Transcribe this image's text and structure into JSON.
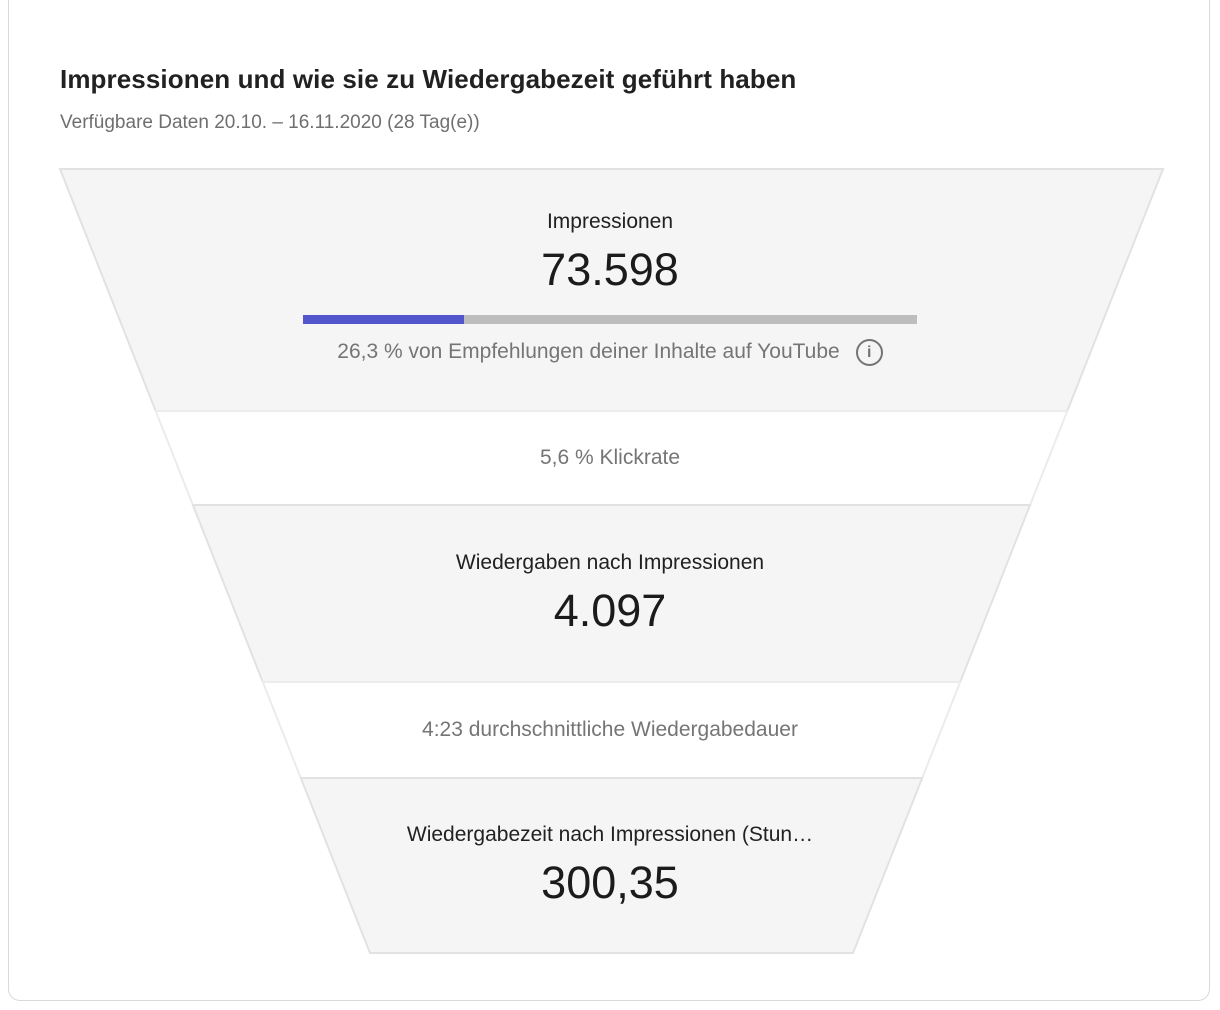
{
  "header": {
    "title": "Impressionen und wie sie zu Wiedergabezeit geführt haben",
    "subtitle": "Verfügbare Daten 20.10. – 16.11.2020 (28 Tag(e))"
  },
  "funnel": {
    "stage_impressions": {
      "label": "Impressionen",
      "value": "73.598",
      "caption": "26,3 % von Empfehlungen deiner Inhalte auf YouTube",
      "bar_percent": 26.3,
      "info_icon_glyph": "i"
    },
    "stage_ctr": {
      "text": "5,6 % Klickrate"
    },
    "stage_views": {
      "label": "Wiedergaben nach Impressionen",
      "value": "4.097"
    },
    "stage_duration": {
      "text": "4:23 durchschnittliche Wiedergabedauer"
    },
    "stage_watchtime": {
      "label": "Wiedergabezeit nach Impressionen (Stun…",
      "value": "300,35"
    }
  },
  "colors": {
    "accent_bar": "#5355cd",
    "bar_track": "#bdbdbd",
    "funnel_fill": "#f5f5f5",
    "funnel_border": "#e2e2e2",
    "text_primary": "#212121",
    "text_secondary": "#757575",
    "card_border": "#d9d9d9"
  },
  "chart_data": {
    "type": "funnel",
    "title": "Impressionen und wie sie zu Wiedergabezeit geführt haben",
    "subtitle": "Verfügbare Daten 20.10. – 16.11.2020 (28 Tag(e))",
    "date_range": {
      "start": "20.10.2020",
      "end": "16.11.2020",
      "days": 28
    },
    "stages": [
      {
        "label": "Impressionen",
        "value": 73598,
        "display": "73.598",
        "annotation": "26,3 % von Empfehlungen deiner Inhalte auf YouTube",
        "recommendation_share_percent": 26.3
      },
      {
        "label": "Klickrate",
        "value_percent": 5.6,
        "display": "5,6 % Klickrate"
      },
      {
        "label": "Wiedergaben nach Impressionen",
        "value": 4097,
        "display": "4.097"
      },
      {
        "label": "durchschnittliche Wiedergabedauer",
        "value_time": "4:23",
        "display": "4:23 durchschnittliche Wiedergabedauer"
      },
      {
        "label": "Wiedergabezeit nach Impressionen (Stunden)",
        "value": 300.35,
        "display": "300,35"
      }
    ],
    "legend_position": "none",
    "grid": false
  }
}
